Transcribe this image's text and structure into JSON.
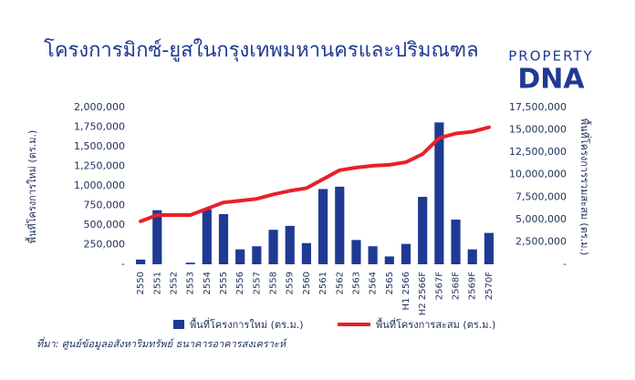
{
  "chart_data": {
    "type": "bar-line",
    "title": "โครงการมิกซ์-ยูสในกรุงเทพมหานครและปริมณฑล",
    "logo": [
      "PROPERTY",
      "DNA"
    ],
    "y_label": "พื้นที่โครงการใหม่ (ตร.ม.)",
    "y2_label": "พื้นที่โครงการรวมสะสม (ตร.ม.)",
    "source": "ที่มา: ศูนย์ข้อมูลอสังหาริมทรัพย์ ธนาคารอาคารสงเคราะห์",
    "categories": [
      "2550",
      "2551",
      "2552",
      "2553",
      "2554",
      "2555",
      "2556",
      "2557",
      "2558",
      "2559",
      "2560",
      "2561",
      "2562",
      "2563",
      "2564",
      "2565",
      "H1 2566",
      "H2 2566F",
      "2567F",
      "2568F",
      "2569F",
      "2570F"
    ],
    "series": [
      {
        "name": "พื้นที่โครงการใหม่ (ตร.ม.)",
        "type": "bar",
        "color": "#1f3a93",
        "values": [
          60000,
          690000,
          0,
          20000,
          700000,
          640000,
          190000,
          230000,
          440000,
          490000,
          270000,
          960000,
          990000,
          310000,
          230000,
          100000,
          260000,
          860000,
          1810000,
          570000,
          190000,
          400000
        ]
      },
      {
        "name": "พื้นที่โครงการสะสม (ตร.ม.)",
        "type": "line",
        "axis": "y2",
        "color": "#e8202a",
        "values": [
          4800000,
          5500000,
          5500000,
          5500000,
          6200000,
          6900000,
          7100000,
          7300000,
          7800000,
          8200000,
          8500000,
          9500000,
          10500000,
          10800000,
          11000000,
          11100000,
          11400000,
          12300000,
          14100000,
          14600000,
          14800000,
          15300000
        ]
      }
    ],
    "ylim": [
      0,
      2000000
    ],
    "yticks": [
      {
        "value": 0,
        "label": "-"
      },
      {
        "value": 250000,
        "label": "250,000"
      },
      {
        "value": 500000,
        "label": "500,000"
      },
      {
        "value": 750000,
        "label": "750,000"
      },
      {
        "value": 1000000,
        "label": "1,000,000"
      },
      {
        "value": 1250000,
        "label": "1,250,000"
      },
      {
        "value": 1500000,
        "label": "1,500,000"
      },
      {
        "value": 1750000,
        "label": "1,750,000"
      },
      {
        "value": 2000000,
        "label": "2,000,000"
      }
    ],
    "y2lim": [
      0,
      17500000
    ],
    "y2ticks": [
      {
        "value": 0,
        "label": "-"
      },
      {
        "value": 2500000,
        "label": "2,500,000"
      },
      {
        "value": 5000000,
        "label": "5,000,000"
      },
      {
        "value": 7500000,
        "label": "7,500,000"
      },
      {
        "value": 10000000,
        "label": "10,000,000"
      },
      {
        "value": 12500000,
        "label": "12,500,000"
      },
      {
        "value": 15000000,
        "label": "15,000,000"
      },
      {
        "value": 17500000,
        "label": "17,500,000"
      }
    ],
    "grid": false
  }
}
